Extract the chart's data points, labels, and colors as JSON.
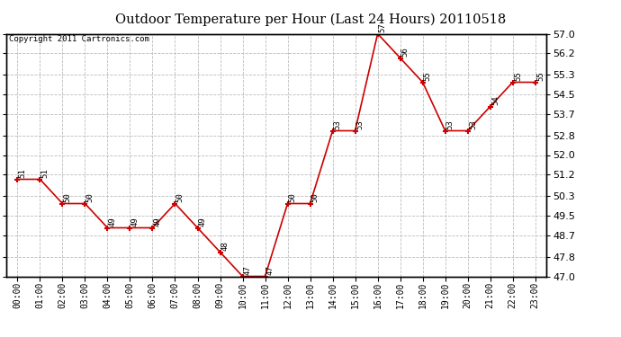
{
  "title": "Outdoor Temperature per Hour (Last 24 Hours) 20110518",
  "copyright": "Copyright 2011 Cartronics.com",
  "hours": [
    "00:00",
    "01:00",
    "02:00",
    "03:00",
    "04:00",
    "05:00",
    "06:00",
    "07:00",
    "08:00",
    "09:00",
    "10:00",
    "11:00",
    "12:00",
    "13:00",
    "14:00",
    "15:00",
    "16:00",
    "17:00",
    "18:00",
    "19:00",
    "20:00",
    "21:00",
    "22:00",
    "23:00"
  ],
  "temperatures": [
    51,
    51,
    50,
    50,
    49,
    49,
    49,
    50,
    49,
    48,
    47,
    47,
    50,
    50,
    53,
    53,
    57,
    56,
    55,
    53,
    53,
    54,
    55,
    55
  ],
  "line_color": "#cc0000",
  "marker_color": "#cc0000",
  "grid_color": "#bbbbbb",
  "background_color": "#ffffff",
  "ylim_min": 47.0,
  "ylim_max": 57.0,
  "yticks": [
    47.0,
    47.8,
    48.7,
    49.5,
    50.3,
    51.2,
    52.0,
    52.8,
    53.7,
    54.5,
    55.3,
    56.2,
    57.0
  ]
}
